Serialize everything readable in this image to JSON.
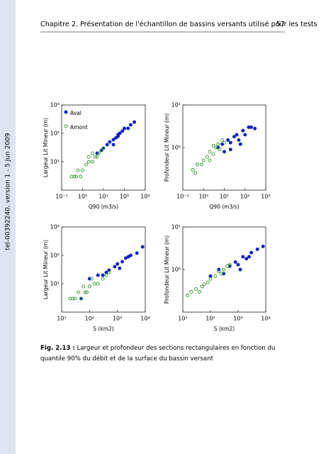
{
  "header": {
    "title": "Chapitre 2. Présentation de l'échantillon de bassins versants utilisé pour les tests",
    "page": "57"
  },
  "side_note": "tel-00392240, version 1 - 5 Jun 2009",
  "caption": {
    "label": "Fig. 2.13 :",
    "text": "Largeur et profondeur des sections rectangulaires en fonction du quantile 90% du débit et de la surface du bassin versant"
  },
  "chart_data": [
    {
      "type": "scatter",
      "xlabel": "Q90 (m3/s)",
      "ylabel": "Largeur Lit Mineur (m)",
      "log_x": true,
      "log_y": true,
      "legend": "upper left",
      "xlim": [
        0.1,
        1000
      ],
      "ylim": [
        1,
        1000
      ],
      "xticks": [
        {
          "value": 0.1,
          "label": "10⁻¹"
        },
        {
          "value": 1,
          "label": "10⁰"
        },
        {
          "value": 10,
          "label": "10¹"
        },
        {
          "value": 100,
          "label": "10²"
        },
        {
          "value": 1000,
          "label": "10³"
        }
      ],
      "yticks": [
        {
          "value": 10,
          "label": "10¹"
        },
        {
          "value": 100,
          "label": "10²"
        },
        {
          "value": 1000,
          "label": "10³"
        }
      ],
      "series": [
        {
          "name": "Aval",
          "color": "#0a1ec8",
          "marker": "filled",
          "x": [
            5,
            8,
            10,
            15,
            20,
            30,
            40,
            50,
            60,
            80,
            100,
            150,
            200,
            300,
            30,
            50
          ],
          "values": [
            20,
            25,
            30,
            40,
            50,
            60,
            70,
            80,
            100,
            120,
            150,
            150,
            200,
            250,
            40,
            90
          ]
        },
        {
          "name": "Amont",
          "color": "#2e9a2e",
          "marker": "open",
          "x": [
            0.3,
            0.4,
            0.5,
            0.6,
            0.8,
            1,
            1.5,
            2,
            3,
            4,
            5,
            6,
            8,
            10,
            3,
            2
          ],
          "values": [
            3,
            3,
            3,
            5,
            3,
            5,
            8,
            10,
            10,
            15,
            15,
            20,
            25,
            30,
            20,
            15
          ]
        }
      ]
    },
    {
      "type": "scatter",
      "xlabel": "Q90 (m3/s)",
      "ylabel": "Profondeur Lit Mineur (m)",
      "log_x": true,
      "log_y": true,
      "xlim": [
        0.1,
        1000
      ],
      "ylim": [
        0.1,
        10
      ],
      "xticks": [
        {
          "value": 0.1,
          "label": "10⁻¹"
        },
        {
          "value": 1,
          "label": "10⁰"
        },
        {
          "value": 10,
          "label": "10¹"
        },
        {
          "value": 100,
          "label": "10²"
        },
        {
          "value": 1000,
          "label": "10³"
        }
      ],
      "yticks": [
        {
          "value": 1,
          "label": "10⁰"
        },
        {
          "value": 10,
          "label": "10¹"
        }
      ],
      "series": [
        {
          "color": "#0a1ec8",
          "marker": "filled",
          "x": [
            5,
            8,
            10,
            15,
            20,
            30,
            40,
            50,
            80,
            100,
            150,
            200,
            300,
            60,
            20
          ],
          "values": [
            1,
            1.2,
            0.8,
            1.5,
            1.3,
            1.8,
            2,
            1.5,
            2.5,
            2,
            3,
            3,
            2.8,
            1.2,
            0.9
          ]
        },
        {
          "color": "#2e9a2e",
          "marker": "open",
          "x": [
            0.3,
            0.4,
            0.5,
            0.8,
            1,
            1.5,
            2,
            3,
            4,
            5,
            6,
            8,
            10,
            2,
            3
          ],
          "values": [
            0.3,
            0.25,
            0.4,
            0.4,
            0.5,
            0.6,
            0.8,
            0.7,
            1,
            1.2,
            0.9,
            1.5,
            1.3,
            0.5,
            1.1
          ]
        }
      ]
    },
    {
      "type": "scatter",
      "xlabel": "S (km2)",
      "ylabel": "Largeur Lit Mineur (m)",
      "log_x": true,
      "log_y": true,
      "xlim": [
        10,
        10000
      ],
      "ylim": [
        1,
        1000
      ],
      "xticks": [
        {
          "value": 10,
          "label": "10¹"
        },
        {
          "value": 100,
          "label": "10²"
        },
        {
          "value": 1000,
          "label": "10³"
        },
        {
          "value": 10000,
          "label": "10⁴"
        }
      ],
      "yticks": [
        {
          "value": 10,
          "label": "10¹"
        },
        {
          "value": 100,
          "label": "10²"
        },
        {
          "value": 1000,
          "label": "10³"
        }
      ],
      "series": [
        {
          "color": "#0a1ec8",
          "marker": "filled",
          "x": [
            50,
            100,
            200,
            300,
            500,
            800,
            1000,
            1500,
            2000,
            3000,
            5000,
            8000,
            400,
            1200,
            2500
          ],
          "values": [
            3,
            15,
            20,
            20,
            30,
            40,
            50,
            60,
            80,
            100,
            120,
            200,
            25,
            35,
            90
          ]
        },
        {
          "color": "#2e9a2e",
          "marker": "open",
          "x": [
            20,
            25,
            30,
            40,
            50,
            70,
            100,
            150,
            200,
            300,
            400,
            500,
            60,
            80,
            120
          ],
          "values": [
            3,
            3,
            3,
            5,
            3,
            5,
            8,
            10,
            10,
            15,
            20,
            25,
            8,
            5,
            15
          ]
        }
      ]
    },
    {
      "type": "scatter",
      "xlabel": "S (km2)",
      "ylabel": "Profondeur Lit Mineur (m)",
      "log_x": true,
      "log_y": true,
      "xlim": [
        10,
        10000
      ],
      "ylim": [
        0.1,
        10
      ],
      "xticks": [
        {
          "value": 10,
          "label": "10¹"
        },
        {
          "value": 100,
          "label": "10²"
        },
        {
          "value": 1000,
          "label": "10³"
        },
        {
          "value": 10000,
          "label": "10⁴"
        }
      ],
      "yticks": [
        {
          "value": 1,
          "label": "10⁰"
        },
        {
          "value": 10,
          "label": "10¹"
        }
      ],
      "series": [
        {
          "color": "#0a1ec8",
          "marker": "filled",
          "x": [
            100,
            200,
            300,
            500,
            800,
            1000,
            1500,
            2000,
            3000,
            5000,
            8000,
            1200,
            2500
          ],
          "values": [
            0.7,
            1,
            0.8,
            1.2,
            1.5,
            1.3,
            2,
            1.8,
            2.5,
            3,
            3.5,
            1,
            2
          ]
        },
        {
          "color": "#2e9a2e",
          "marker": "open",
          "x": [
            15,
            20,
            30,
            40,
            50,
            80,
            100,
            150,
            200,
            300,
            400,
            500,
            60,
            250
          ],
          "values": [
            0.25,
            0.3,
            0.35,
            0.3,
            0.4,
            0.5,
            0.6,
            0.7,
            0.9,
            1,
            1.2,
            1.3,
            0.45,
            0.8
          ]
        }
      ]
    }
  ]
}
